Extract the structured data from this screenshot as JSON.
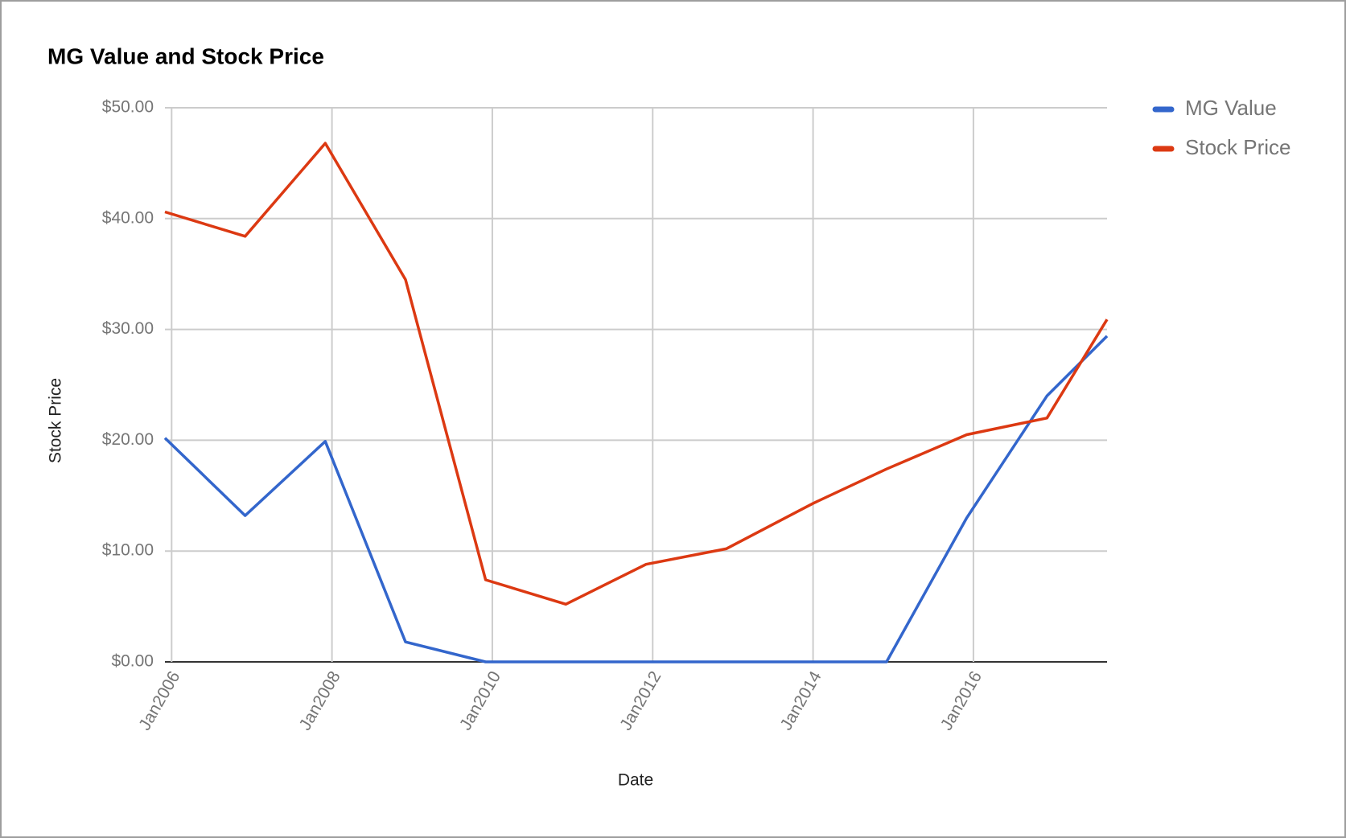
{
  "chart_data": {
    "type": "line",
    "title": "MG Value and Stock Price",
    "x_label": "Date",
    "y_label": "Stock Price",
    "x": [
      "2005-12",
      "2006-12",
      "2007-12",
      "2008-12",
      "2009-12",
      "2010-12",
      "2011-12",
      "2012-12",
      "2014-01",
      "2014-12",
      "2015-12",
      "2016-12",
      "2017-09"
    ],
    "series": [
      {
        "name": "MG Value",
        "color": "#3366cc",
        "values": [
          20.2,
          13.2,
          19.9,
          1.8,
          0,
          0,
          0,
          0,
          0,
          0,
          13.0,
          24.0,
          29.4
        ]
      },
      {
        "name": "Stock Price",
        "color": "#dc3912",
        "values": [
          40.6,
          38.4,
          46.8,
          34.5,
          7.4,
          5.2,
          8.8,
          10.2,
          14.3,
          17.4,
          20.5,
          22.0,
          30.9
        ]
      }
    ],
    "xlim": [
      "2005-12",
      "2017-09"
    ],
    "xticks": [
      {
        "value": "2006-01",
        "label": "Jan2006"
      },
      {
        "value": "2008-01",
        "label": "Jan2008"
      },
      {
        "value": "2010-01",
        "label": "Jan2010"
      },
      {
        "value": "2012-01",
        "label": "Jan2012"
      },
      {
        "value": "2014-01",
        "label": "Jan2014"
      },
      {
        "value": "2016-01",
        "label": "Jan2016"
      }
    ],
    "ylim": [
      0,
      50
    ],
    "yticks": [
      {
        "value": 0,
        "label": "$0.00"
      },
      {
        "value": 10,
        "label": "$10.00"
      },
      {
        "value": 20,
        "label": "$20.00"
      },
      {
        "value": 30,
        "label": "$30.00"
      },
      {
        "value": 40,
        "label": "$40.00"
      },
      {
        "value": 50,
        "label": "$50.00"
      }
    ],
    "grid": true,
    "legend": "right"
  }
}
